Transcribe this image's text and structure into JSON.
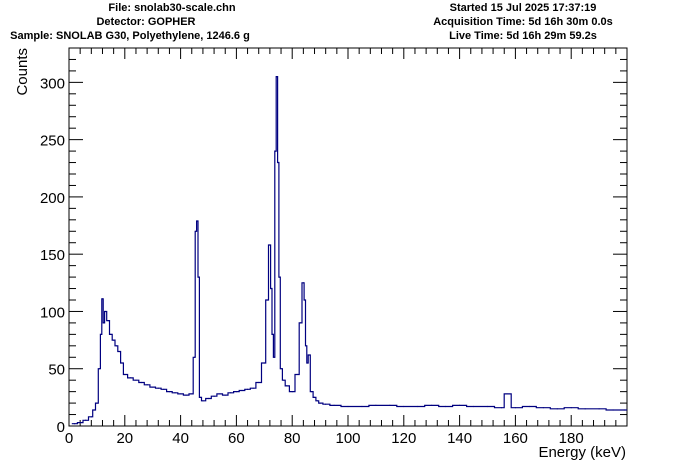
{
  "header": {
    "left": {
      "file": "File: snolab30-scale.chn",
      "detector": "Detector: GOPHER",
      "sample": "Sample: SNOLAB G30, Polyethylene, 1246.6 g"
    },
    "right": {
      "started": "Started 15 Jul 2025 17:37:19",
      "acquisition": "Acquisition Time: 5d 16h 30m 0.0s",
      "live": "Live Time: 5d 16h 29m 59.2s"
    }
  },
  "colors": {
    "series": "#000080",
    "axis": "#000000"
  },
  "chart_data": {
    "type": "line",
    "style": "step histogram",
    "xlabel": "Energy (keV)",
    "ylabel": "Counts",
    "xlim": [
      0,
      200
    ],
    "ylim": [
      0,
      330
    ],
    "xticks": [
      0,
      20,
      40,
      60,
      80,
      100,
      120,
      140,
      160,
      180
    ],
    "yticks": [
      0,
      50,
      100,
      150,
      200,
      250,
      300
    ],
    "grid": false,
    "legend": "none",
    "series": [
      {
        "x": [
          2,
          4,
          6,
          8,
          9,
          10,
          11,
          11.5,
          12,
          12.5,
          13,
          14,
          15,
          16,
          17,
          18,
          19,
          20,
          22,
          24,
          26,
          28,
          30,
          32,
          34,
          36,
          38,
          40,
          42,
          44,
          45,
          45.5,
          46,
          46.5,
          47,
          48,
          50,
          52,
          54,
          56,
          58,
          60,
          62,
          64,
          66,
          68,
          70,
          71,
          72,
          72.5,
          73,
          73.5,
          74,
          74.5,
          75,
          75.5,
          76,
          77,
          78,
          80,
          82,
          83,
          84,
          84.5,
          85,
          85.5,
          86,
          87,
          88,
          89,
          90,
          92,
          95,
          100,
          105,
          110,
          115,
          120,
          125,
          130,
          135,
          140,
          145,
          150,
          155,
          157,
          160,
          165,
          170,
          175,
          180,
          185,
          190,
          195,
          199
        ],
        "y": [
          2,
          3,
          5,
          8,
          14,
          20,
          50,
          80,
          111,
          90,
          100,
          92,
          80,
          75,
          70,
          65,
          55,
          45,
          42,
          40,
          38,
          36,
          34,
          33,
          32,
          30,
          29,
          28,
          27,
          28,
          60,
          170,
          179,
          130,
          25,
          22,
          24,
          26,
          28,
          27,
          29,
          30,
          31,
          32,
          33,
          38,
          55,
          110,
          158,
          120,
          80,
          60,
          240,
          305,
          230,
          130,
          50,
          40,
          35,
          30,
          45,
          90,
          125,
          110,
          70,
          55,
          62,
          30,
          25,
          22,
          20,
          19,
          18,
          17,
          17,
          18,
          18,
          17,
          17,
          18,
          17,
          18,
          17,
          17,
          16,
          28,
          16,
          17,
          16,
          15,
          16,
          15,
          15,
          14,
          14
        ]
      }
    ]
  }
}
